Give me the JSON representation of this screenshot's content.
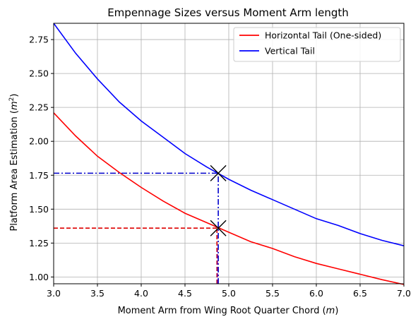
{
  "chart_data": {
    "type": "line",
    "title": "Empennage Sizes versus Moment Arm length",
    "xlabel_main": "Moment Arm from Wing Root Quarter Chord (",
    "xlabel_unit": "m",
    "xlabel_close": ")",
    "ylabel_main": "Platform Area Estimation (",
    "ylabel_unit": "m",
    "ylabel_sup": "2",
    "ylabel_close": ")",
    "xlim": [
      3.0,
      7.0
    ],
    "ylim": [
      0.95,
      2.87
    ],
    "xticks": [
      "3.0",
      "3.5",
      "4.0",
      "4.5",
      "5.0",
      "5.5",
      "6.0",
      "6.5",
      "7.0"
    ],
    "yticks": [
      "1.00",
      "1.25",
      "1.50",
      "1.75",
      "2.00",
      "2.25",
      "2.50",
      "2.75"
    ],
    "grid": true,
    "legend_position": "top-right",
    "series": [
      {
        "name": "Horizontal Tail (One-sided)",
        "color": "#ff0000",
        "x": [
          3.0,
          3.25,
          3.5,
          3.75,
          4.0,
          4.25,
          4.5,
          4.75,
          5.0,
          5.25,
          5.5,
          5.75,
          6.0,
          6.25,
          6.5,
          6.75,
          7.0
        ],
        "y": [
          2.21,
          2.04,
          1.89,
          1.77,
          1.66,
          1.56,
          1.47,
          1.4,
          1.33,
          1.26,
          1.21,
          1.15,
          1.1,
          1.06,
          1.02,
          0.98,
          0.945
        ]
      },
      {
        "name": "Vertical Tail",
        "color": "#0000ff",
        "x": [
          3.0,
          3.25,
          3.5,
          3.75,
          4.0,
          4.25,
          4.5,
          4.75,
          5.0,
          5.25,
          5.5,
          5.75,
          6.0,
          6.25,
          6.5,
          6.75,
          7.0
        ],
        "y": [
          2.87,
          2.65,
          2.46,
          2.29,
          2.15,
          2.03,
          1.91,
          1.81,
          1.72,
          1.64,
          1.57,
          1.5,
          1.43,
          1.38,
          1.32,
          1.27,
          1.23
        ]
      }
    ],
    "markers": [
      {
        "x": 4.88,
        "y": 1.765,
        "symbol": "x",
        "color": "#000000"
      },
      {
        "x": 4.88,
        "y": 1.36,
        "symbol": "x",
        "color": "#000000"
      }
    ],
    "reference_lines": [
      {
        "kind": "h",
        "y": 1.765,
        "x_from": 3.0,
        "x_to": 4.88,
        "style": "dashdot",
        "color": "#0000cc"
      },
      {
        "kind": "v",
        "x": 4.88,
        "y_from": 0.95,
        "y_to": 1.765,
        "style": "dashdot",
        "color": "#0000cc"
      },
      {
        "kind": "h",
        "y": 1.36,
        "x_from": 3.0,
        "x_to": 4.88,
        "style": "dashed",
        "color": "#dd0000"
      },
      {
        "kind": "v",
        "x": 4.865,
        "y_from": 0.95,
        "y_to": 1.36,
        "style": "dashed",
        "color": "#dd0000"
      },
      {
        "kind": "v",
        "x": 4.87,
        "y_from": 0.95,
        "y_to": 1.2,
        "style": "dashed",
        "color": "#800080"
      }
    ]
  }
}
